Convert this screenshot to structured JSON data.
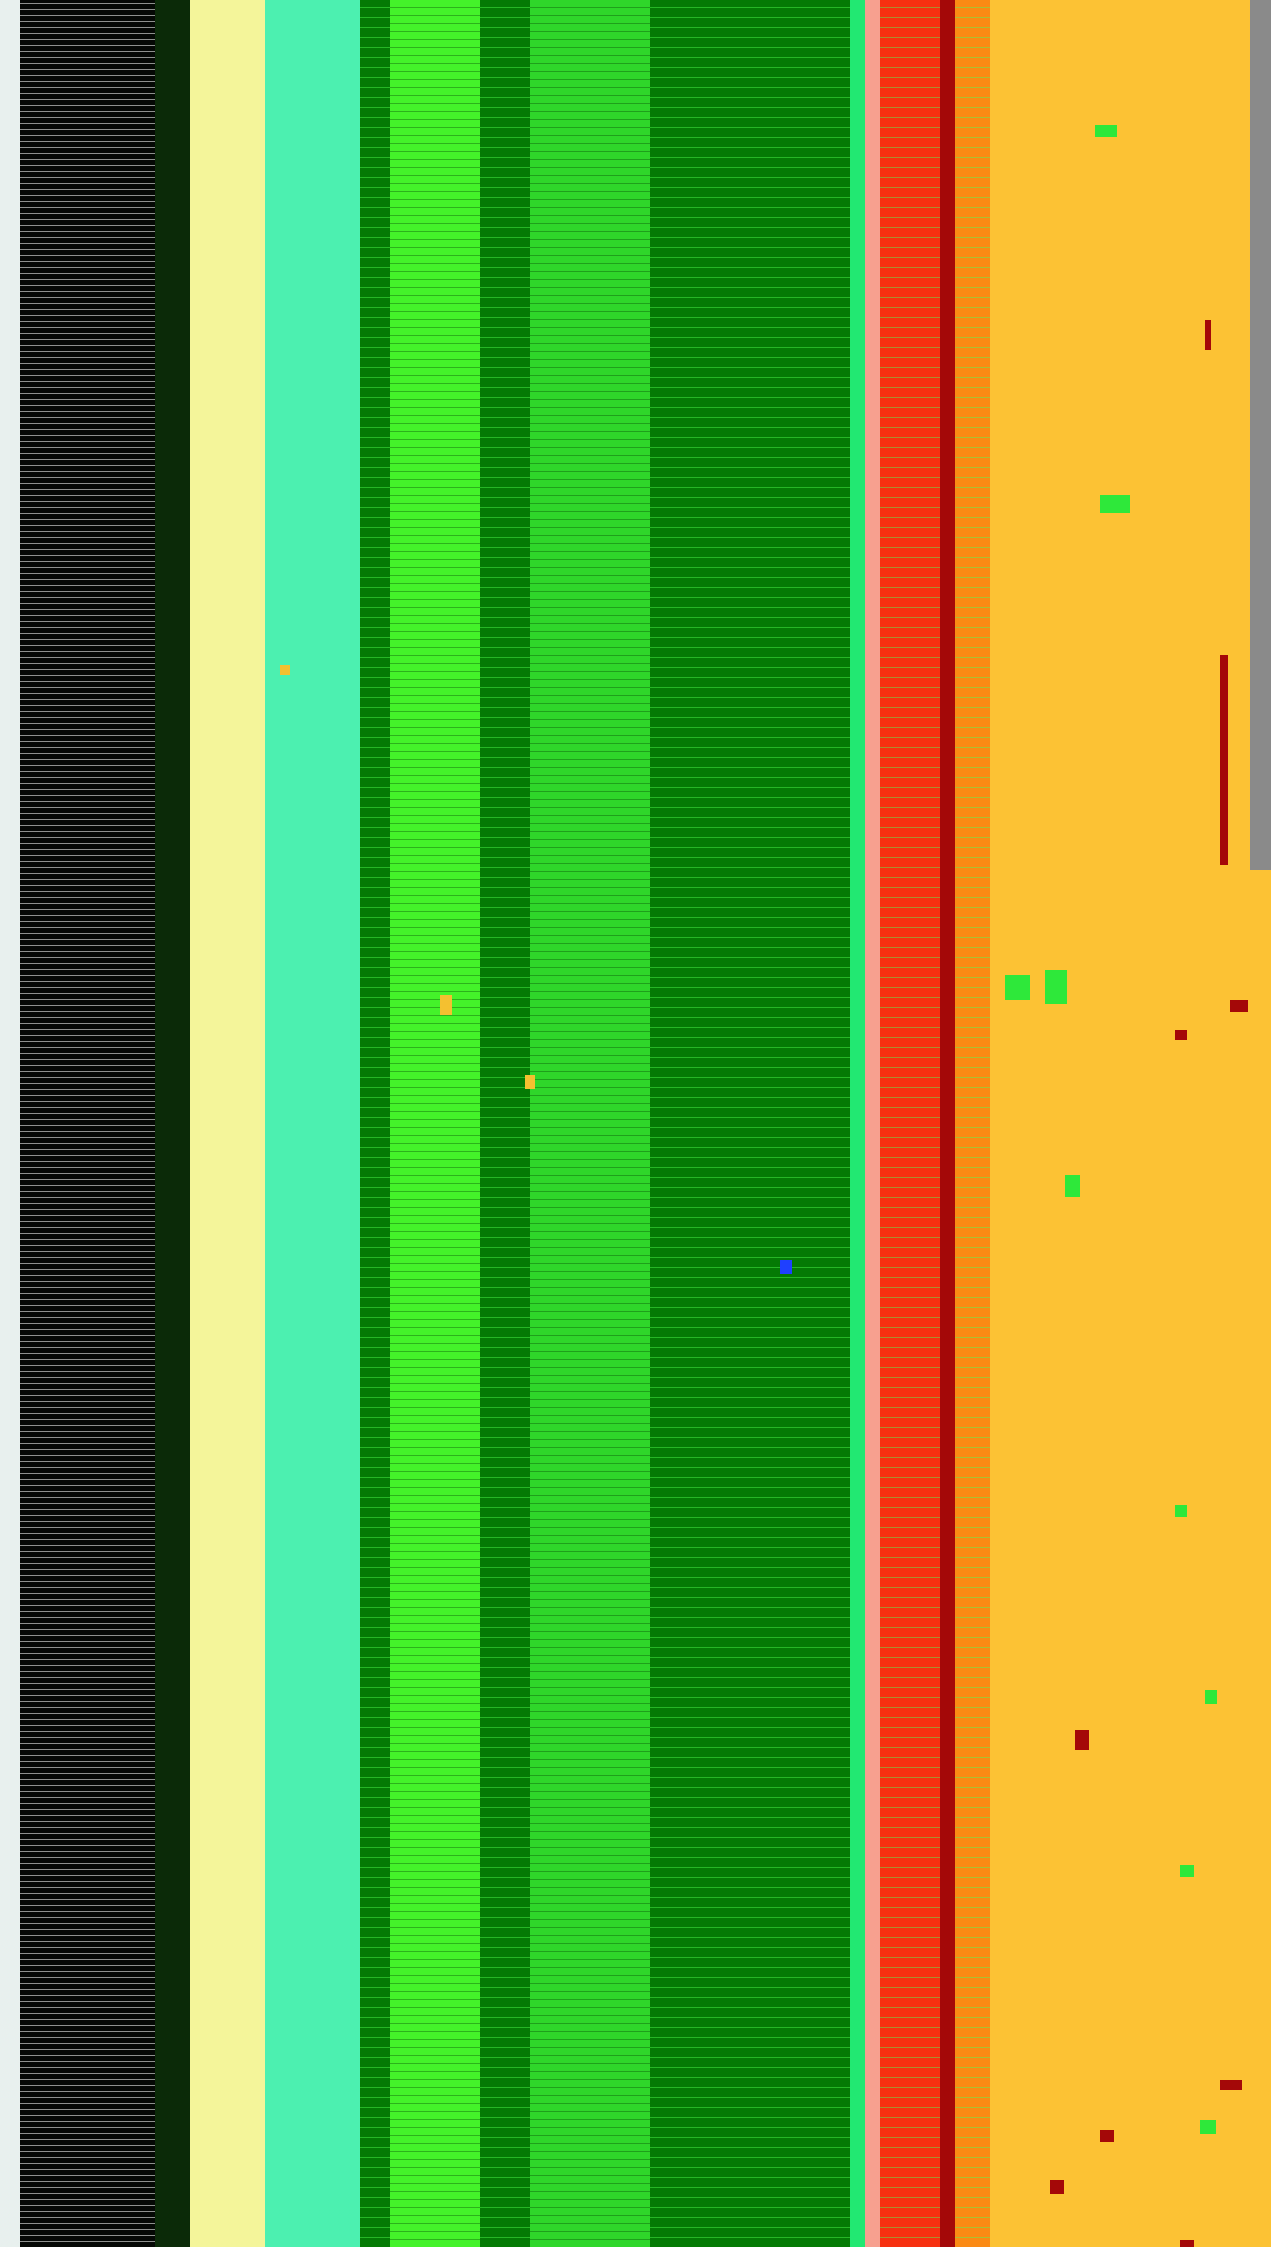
{
  "image": {
    "description_visible_text": "",
    "palette": {
      "white_edge": "#e8f0ee",
      "black": "#050805",
      "dark_green_shadow": "#0b2a08",
      "pale_yellow": "#f4f59a",
      "aqua": "#4cf0b0",
      "dark_green": "#047a04",
      "lime": "#44f22a",
      "mid_green": "#2fd62a",
      "spring_green": "#22e872",
      "salmon": "#f7a08f",
      "red": "#f73010",
      "dark_red": "#a40808",
      "orange": "#fb8a14",
      "amber": "#fcc234",
      "gray": "#8a8a8a"
    },
    "bands": [
      {
        "name": "white-edge",
        "color_key": "white_edge"
      },
      {
        "name": "black",
        "color_key": "black"
      },
      {
        "name": "dark-green-shadow",
        "color_key": "dark_green_shadow"
      },
      {
        "name": "pale-yellow",
        "color_key": "pale_yellow"
      },
      {
        "name": "aqua",
        "color_key": "aqua"
      },
      {
        "name": "dark-green",
        "color_key": "dark_green"
      },
      {
        "name": "lime",
        "color_key": "lime"
      },
      {
        "name": "dark-green",
        "color_key": "dark_green"
      },
      {
        "name": "mid-green",
        "color_key": "mid_green"
      },
      {
        "name": "dark-green",
        "color_key": "dark_green"
      },
      {
        "name": "spring-green",
        "color_key": "spring_green"
      },
      {
        "name": "salmon",
        "color_key": "salmon"
      },
      {
        "name": "red",
        "color_key": "red"
      },
      {
        "name": "dark-red",
        "color_key": "dark_red"
      },
      {
        "name": "orange",
        "color_key": "orange"
      },
      {
        "name": "amber",
        "color_key": "amber"
      },
      {
        "name": "gray",
        "color_key": "gray"
      }
    ]
  }
}
